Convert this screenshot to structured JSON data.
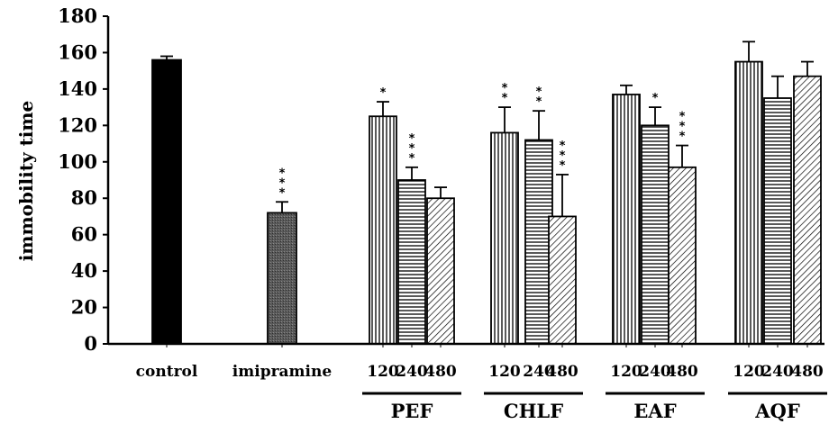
{
  "chart_data": {
    "type": "bar",
    "title": "",
    "xlabel": "",
    "ylabel": "immobility time",
    "ylim": [
      0,
      180
    ],
    "yticks": [
      "0",
      "20",
      "40",
      "60",
      "80",
      "100",
      "120",
      "140",
      "160",
      "180"
    ],
    "grid": false,
    "legend": "none",
    "bars": [
      {
        "label": "control",
        "group": "",
        "value": 156,
        "error": 2,
        "sig": "",
        "fill": "solid-black"
      },
      {
        "label": "imipramine",
        "group": "",
        "value": 72,
        "error": 6,
        "sig": "***",
        "fill": "solid-gray"
      },
      {
        "label": "120",
        "group": "PEF",
        "value": 125,
        "error": 8,
        "sig": "*",
        "fill": "vertical-lines"
      },
      {
        "label": "240",
        "group": "PEF",
        "value": 90,
        "error": 7,
        "sig": "***",
        "fill": "horizontal-lines"
      },
      {
        "label": "480",
        "group": "PEF",
        "value": 80,
        "error": 6,
        "sig": "",
        "fill": "diagonal-lines"
      },
      {
        "label": "120",
        "group": "CHLF",
        "value": 116,
        "error": 14,
        "sig": "**",
        "fill": "vertical-lines"
      },
      {
        "label": "240",
        "group": "CHLF",
        "value": 112,
        "error": 16,
        "sig": "**",
        "fill": "horizontal-lines"
      },
      {
        "label": "480",
        "group": "CHLF",
        "value": 70,
        "error": 23,
        "sig": "***",
        "fill": "diagonal-lines"
      },
      {
        "label": "120",
        "group": "EAF",
        "value": 137,
        "error": 5,
        "sig": "",
        "fill": "vertical-lines"
      },
      {
        "label": "240",
        "group": "EAF",
        "value": 120,
        "error": 10,
        "sig": "*",
        "fill": "horizontal-lines"
      },
      {
        "label": "480",
        "group": "EAF",
        "value": 97,
        "error": 12,
        "sig": "***",
        "fill": "diagonal-lines"
      },
      {
        "label": "120",
        "group": "AQF",
        "value": 155,
        "error": 11,
        "sig": "",
        "fill": "vertical-lines"
      },
      {
        "label": "240",
        "group": "AQF",
        "value": 135,
        "error": 12,
        "sig": "",
        "fill": "horizontal-lines"
      },
      {
        "label": "480",
        "group": "AQF",
        "value": 147,
        "error": 8,
        "sig": "",
        "fill": "diagonal-lines"
      }
    ],
    "groups": [
      "PEF",
      "CHLF",
      "EAF",
      "AQF"
    ]
  }
}
